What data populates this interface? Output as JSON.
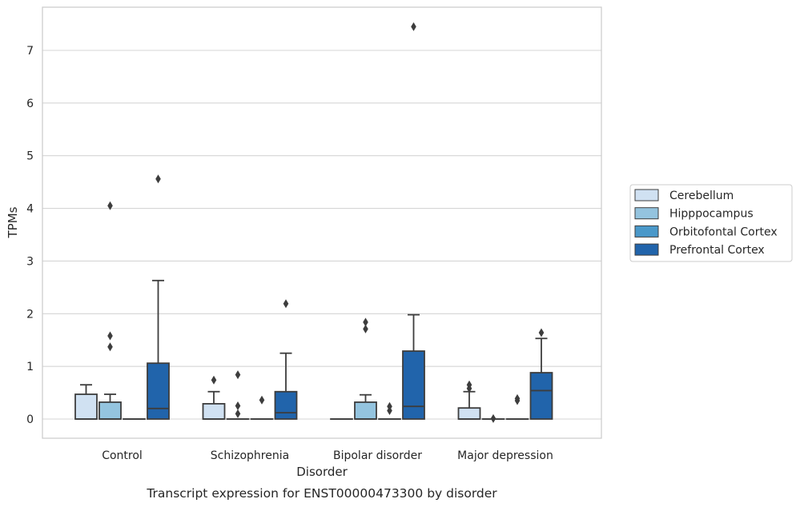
{
  "chart_data": {
    "type": "box",
    "caption": "Transcript expression for ENST00000473300 by disorder",
    "xlabel": "Disorder",
    "ylabel": "TPMs",
    "ylim": [
      -0.37,
      7.85
    ],
    "yticks": [
      0,
      1,
      2,
      3,
      4,
      5,
      6,
      7
    ],
    "grid": "horizontal",
    "legend_position": "right",
    "categories": [
      "Control",
      "Schizophrenia",
      "Bipolar disorder",
      "Major depression"
    ],
    "series": [
      {
        "name": "Cerebellum",
        "color": "#d0e1f2",
        "boxes": [
          {
            "min": 0,
            "q1": 0,
            "median": 0,
            "q3": 0.47,
            "max": 0.65,
            "outliers": []
          },
          {
            "min": 0,
            "q1": 0,
            "median": 0,
            "q3": 0.29,
            "max": 0.52,
            "outliers": [
              0.74
            ]
          },
          {
            "min": 0,
            "q1": 0,
            "median": 0,
            "q3": 0,
            "max": 0,
            "outliers": []
          },
          {
            "min": 0,
            "q1": 0,
            "median": 0,
            "q3": 0.21,
            "max": 0.52,
            "outliers": [
              0.58,
              0.65
            ]
          }
        ]
      },
      {
        "name": "Hipppocampus",
        "color": "#94c4df",
        "boxes": [
          {
            "min": 0,
            "q1": 0,
            "median": 0,
            "q3": 0.32,
            "max": 0.47,
            "outliers": [
              1.37,
              1.58,
              4.05
            ]
          },
          {
            "min": 0,
            "q1": 0,
            "median": 0,
            "q3": 0,
            "max": 0,
            "outliers": [
              0.1,
              0.25,
              0.84
            ]
          },
          {
            "min": 0,
            "q1": 0,
            "median": 0,
            "q3": 0.32,
            "max": 0.46,
            "outliers": [
              1.71,
              1.84
            ]
          },
          {
            "min": 0,
            "q1": 0,
            "median": 0,
            "q3": 0,
            "max": 0,
            "outliers": [
              0.01
            ]
          }
        ]
      },
      {
        "name": "Orbitofontal Cortex",
        "color": "#4a98c9",
        "boxes": [
          {
            "min": 0,
            "q1": 0,
            "median": 0,
            "q3": 0,
            "max": 0,
            "outliers": []
          },
          {
            "min": 0,
            "q1": 0,
            "median": 0,
            "q3": 0,
            "max": 0,
            "outliers": [
              0.36
            ]
          },
          {
            "min": 0,
            "q1": 0,
            "median": 0,
            "q3": 0,
            "max": 0,
            "outliers": [
              0.16,
              0.24
            ]
          },
          {
            "min": 0,
            "q1": 0,
            "median": 0,
            "q3": 0,
            "max": 0,
            "outliers": [
              0.35,
              0.39
            ]
          }
        ]
      },
      {
        "name": "Prefrontal Cortex",
        "color": "#2164ab",
        "boxes": [
          {
            "min": 0,
            "q1": 0,
            "median": 0.2,
            "q3": 1.06,
            "max": 2.63,
            "outliers": [
              4.56
            ]
          },
          {
            "min": 0,
            "q1": 0,
            "median": 0.12,
            "q3": 0.52,
            "max": 1.25,
            "outliers": [
              2.19
            ]
          },
          {
            "min": 0,
            "q1": 0,
            "median": 0.24,
            "q3": 1.29,
            "max": 1.98,
            "outliers": [
              7.45
            ]
          },
          {
            "min": 0,
            "q1": 0,
            "median": 0.54,
            "q3": 0.88,
            "max": 1.53,
            "outliers": [
              1.64
            ]
          }
        ]
      }
    ]
  }
}
